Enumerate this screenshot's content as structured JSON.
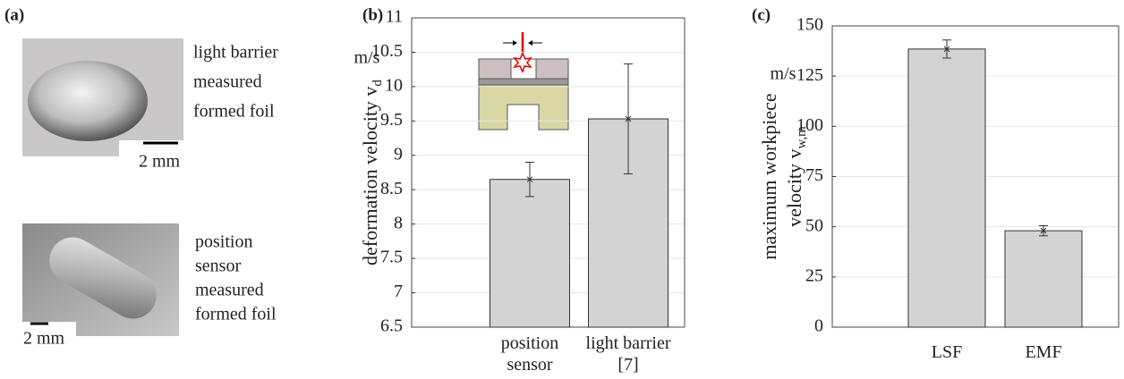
{
  "panel_a": {
    "label": "(a)",
    "top": {
      "caption": [
        "light barrier",
        "measured",
        "formed foil"
      ],
      "scale": "2 mm"
    },
    "bottom": {
      "caption": [
        "position",
        "sensor",
        "measured",
        "formed foil"
      ],
      "scale": "2 mm"
    }
  },
  "chart_data": [
    {
      "type": "bar",
      "panel": "(b)",
      "ylabel": "deformation velocity v",
      "ylabel_sub": "d",
      "unit": "m/s",
      "categories": [
        "position sensor",
        "light barrier [7]"
      ],
      "values": [
        8.65,
        9.53
      ],
      "errors": [
        0.25,
        0.8
      ],
      "color": "#d3d3d3",
      "ylim": [
        6.5,
        11
      ],
      "yticks": [
        6.5,
        7,
        7.5,
        8,
        8.5,
        9,
        9.5,
        10,
        10.5,
        11
      ],
      "grid": true
    },
    {
      "type": "bar",
      "panel": "(c)",
      "ylabel": [
        "maximum workpiece",
        "velocity v"
      ],
      "ylabel_sub": "w,m",
      "unit": "m/s",
      "categories": [
        "LSF",
        "EMF"
      ],
      "values": [
        138.5,
        48
      ],
      "errors": [
        4.5,
        2.5
      ],
      "color": "#d3d3d3",
      "ylim": [
        0,
        150
      ],
      "yticks": [
        0,
        25,
        50,
        75,
        100,
        125,
        150
      ],
      "grid": true
    }
  ]
}
